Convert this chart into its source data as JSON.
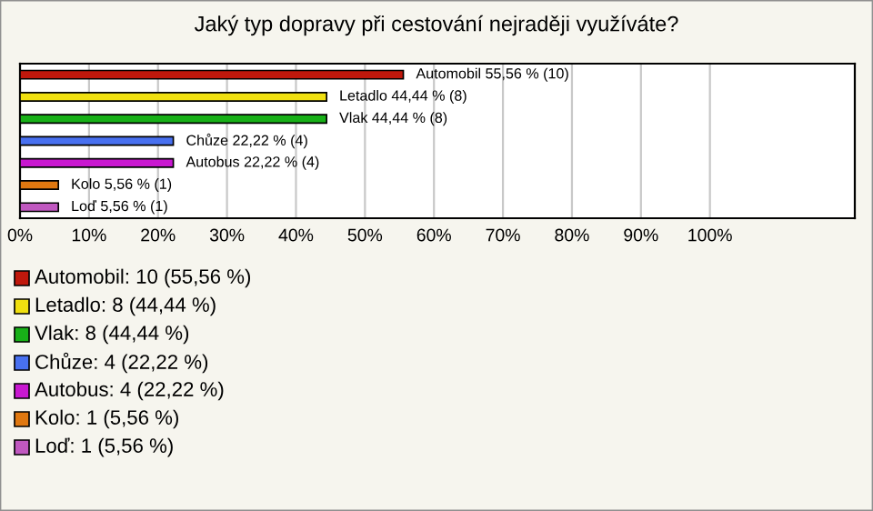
{
  "chart_data": {
    "type": "bar",
    "orientation": "horizontal",
    "title": "Jaký typ dopravy při cestování nejraději využíváte?",
    "categories": [
      null,
      null,
      null,
      null,
      null,
      null,
      null
    ],
    "values": [
      55.56,
      44.44,
      44.44,
      22.22,
      22.22,
      5.56,
      5.56
    ],
    "colors": [
      "#c0180c",
      "#f0e010",
      "#18b018",
      "#4870f0",
      "#c818d0",
      "#e07810",
      "#c058c0"
    ],
    "value_labels": [
      "Automobil 55,56 % (10)",
      "Letadlo 44,44 % (8)",
      "Vlak 44,44 % (8)",
      "Chůze 22,22 % (4)",
      "Autobus 22,22 % (4)",
      "Kolo 5,56 % (1)",
      "Loď 5,56 % (1)"
    ],
    "xlim": [
      0,
      121
    ],
    "xticks": [
      {
        "value": 0,
        "label": "0%"
      },
      {
        "value": 10,
        "label": "10%"
      },
      {
        "value": 20,
        "label": "20%"
      },
      {
        "value": 30,
        "label": "30%"
      },
      {
        "value": 40,
        "label": "40%"
      },
      {
        "value": 50,
        "label": "50%"
      },
      {
        "value": 60,
        "label": "60%"
      },
      {
        "value": 70,
        "label": "70%"
      },
      {
        "value": 80,
        "label": "80%"
      },
      {
        "value": 90,
        "label": "90%"
      },
      {
        "value": 100,
        "label": "100%"
      }
    ],
    "grid": "x",
    "tick_labels": "x",
    "annotations": [
      "Automobil: 10 (55,56 %)",
      "Letadlo: 8 (44,44 %)",
      "Vlak: 8 (44,44 %)",
      "Chůze: 4 (22,22 %)",
      "Autobus: 4 (22,22 %)",
      "Kolo: 1 (5,56 %)",
      "Loď: 1 (5,56 %)"
    ]
  }
}
